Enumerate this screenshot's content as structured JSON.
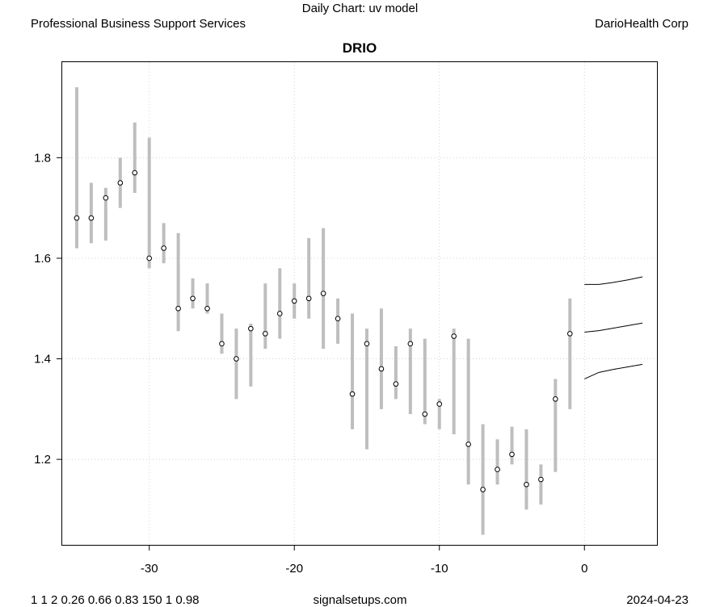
{
  "header": {
    "chart_name": "Daily Chart: uv model",
    "sector": "Professional Business Support Services",
    "company": "DarioHealth Corp"
  },
  "footer": {
    "params": "1 1 2 0.26 0.66 0.83 150 1 0.98",
    "source": "signalsetups.com",
    "date": "2024-04-23"
  },
  "chart_data": {
    "type": "scatter",
    "title": "DRIO",
    "xlabel": "",
    "ylabel": "",
    "xlim": [
      -36,
      5
    ],
    "ylim": [
      1.03,
      1.99
    ],
    "grid": true,
    "x_ticks": [
      -30,
      -20,
      -10,
      0
    ],
    "y_ticks": [
      1.2,
      1.4,
      1.6,
      1.8
    ],
    "x_tick_labels": [
      "-30",
      "-20",
      "-10",
      "0"
    ],
    "y_tick_labels": [
      "1.2",
      "1.4",
      "1.6",
      "1.8"
    ],
    "colors": {
      "range": "#bebebe",
      "point": "#000000",
      "forecast": "#000000",
      "grid": "#d3d3d3"
    },
    "ranges": [
      {
        "x": -35,
        "low": 1.62,
        "high": 1.94,
        "close": 1.68
      },
      {
        "x": -34,
        "low": 1.63,
        "high": 1.75,
        "close": 1.68
      },
      {
        "x": -33,
        "low": 1.635,
        "high": 1.74,
        "close": 1.72
      },
      {
        "x": -32,
        "low": 1.7,
        "high": 1.8,
        "close": 1.75
      },
      {
        "x": -31,
        "low": 1.73,
        "high": 1.87,
        "close": 1.77
      },
      {
        "x": -30,
        "low": 1.58,
        "high": 1.84,
        "close": 1.6
      },
      {
        "x": -29,
        "low": 1.59,
        "high": 1.67,
        "close": 1.62
      },
      {
        "x": -28,
        "low": 1.455,
        "high": 1.65,
        "close": 1.5
      },
      {
        "x": -27,
        "low": 1.5,
        "high": 1.56,
        "close": 1.52
      },
      {
        "x": -26,
        "low": 1.49,
        "high": 1.55,
        "close": 1.5
      },
      {
        "x": -25,
        "low": 1.41,
        "high": 1.49,
        "close": 1.43
      },
      {
        "x": -24,
        "low": 1.32,
        "high": 1.46,
        "close": 1.4
      },
      {
        "x": -23,
        "low": 1.345,
        "high": 1.47,
        "close": 1.46
      },
      {
        "x": -22,
        "low": 1.42,
        "high": 1.55,
        "close": 1.45
      },
      {
        "x": -21,
        "low": 1.44,
        "high": 1.58,
        "close": 1.49
      },
      {
        "x": -20,
        "low": 1.48,
        "high": 1.55,
        "close": 1.515
      },
      {
        "x": -19,
        "low": 1.48,
        "high": 1.64,
        "close": 1.52
      },
      {
        "x": -18,
        "low": 1.42,
        "high": 1.66,
        "close": 1.53
      },
      {
        "x": -17,
        "low": 1.43,
        "high": 1.52,
        "close": 1.48
      },
      {
        "x": -16,
        "low": 1.26,
        "high": 1.49,
        "close": 1.33
      },
      {
        "x": -15,
        "low": 1.22,
        "high": 1.46,
        "close": 1.43
      },
      {
        "x": -14,
        "low": 1.3,
        "high": 1.5,
        "close": 1.38
      },
      {
        "x": -13,
        "low": 1.32,
        "high": 1.425,
        "close": 1.35
      },
      {
        "x": -12,
        "low": 1.29,
        "high": 1.46,
        "close": 1.43
      },
      {
        "x": -11,
        "low": 1.27,
        "high": 1.44,
        "close": 1.29
      },
      {
        "x": -10,
        "low": 1.26,
        "high": 1.32,
        "close": 1.31
      },
      {
        "x": -9,
        "low": 1.25,
        "high": 1.46,
        "close": 1.445
      },
      {
        "x": -8,
        "low": 1.15,
        "high": 1.44,
        "close": 1.23
      },
      {
        "x": -7,
        "low": 1.05,
        "high": 1.27,
        "close": 1.14
      },
      {
        "x": -6,
        "low": 1.15,
        "high": 1.24,
        "close": 1.18
      },
      {
        "x": -5,
        "low": 1.19,
        "high": 1.265,
        "close": 1.21
      },
      {
        "x": -4,
        "low": 1.1,
        "high": 1.26,
        "close": 1.15
      },
      {
        "x": -3,
        "low": 1.11,
        "high": 1.19,
        "close": 1.16
      },
      {
        "x": -2,
        "low": 1.175,
        "high": 1.36,
        "close": 1.32
      },
      {
        "x": -1,
        "low": 1.3,
        "high": 1.52,
        "close": 1.45
      }
    ],
    "forecast": [
      {
        "name": "upper",
        "points": [
          [
            0,
            1.548
          ],
          [
            1,
            1.548
          ],
          [
            2,
            1.552
          ],
          [
            3,
            1.557
          ],
          [
            4,
            1.563
          ]
        ]
      },
      {
        "name": "middle",
        "points": [
          [
            0,
            1.453
          ],
          [
            1,
            1.456
          ],
          [
            2,
            1.461
          ],
          [
            3,
            1.466
          ],
          [
            4,
            1.471
          ]
        ]
      },
      {
        "name": "lower",
        "points": [
          [
            0,
            1.36
          ],
          [
            1,
            1.373
          ],
          [
            2,
            1.379
          ],
          [
            3,
            1.384
          ],
          [
            4,
            1.389
          ]
        ]
      }
    ]
  }
}
